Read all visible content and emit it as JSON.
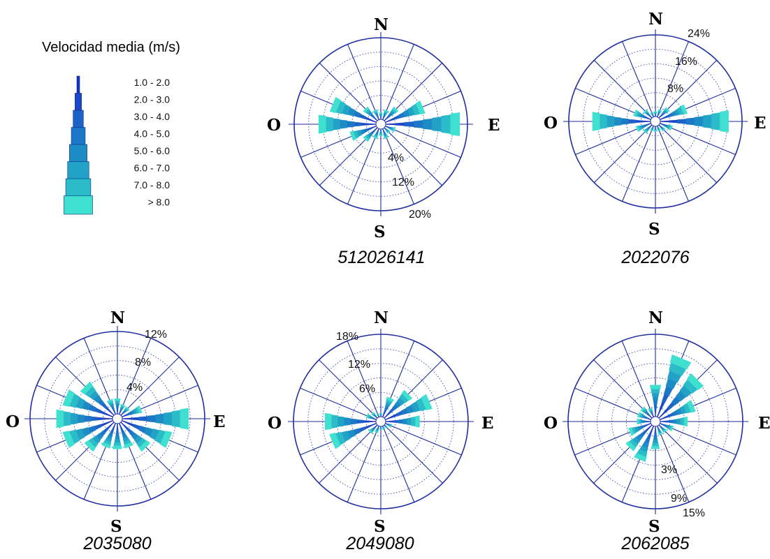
{
  "legend": {
    "title": "Velocidad media (m/s)",
    "bins": [
      "1.0 -  2.0",
      "2.0 -  3.0",
      "3.0 -  4.0",
      "4.0 -  5.0",
      "5.0 -  6.0",
      "6.0 -  7.0",
      "7.0 -  8.0",
      "> 8.0"
    ],
    "colors": [
      "#1a2fbf",
      "#1c48c8",
      "#1d62c9",
      "#1c78c6",
      "#1d8cc4",
      "#22a2c6",
      "#2cbcc9",
      "#3fe0d0"
    ]
  },
  "chart_data": [
    {
      "type": "windrose",
      "station": "512026141",
      "directions": [
        "N",
        "E",
        "S",
        "O"
      ],
      "sectors": 16,
      "ring_labels": [
        "4%",
        "12%",
        "20%"
      ],
      "rmax": 24,
      "freqs": [
        2,
        3,
        5,
        12,
        22,
        3,
        2,
        3,
        2,
        3,
        5,
        8,
        17,
        14,
        5,
        3
      ]
    },
    {
      "type": "windrose",
      "station": "2022076",
      "directions": [
        "N",
        "E",
        "S",
        "O"
      ],
      "sectors": 16,
      "ring_labels": [
        "24%",
        "16%",
        "8%"
      ],
      "rmax": 32,
      "freqs": [
        2,
        3,
        5,
        11,
        27,
        5,
        3,
        2,
        2,
        2,
        4,
        6,
        23,
        7,
        4,
        2
      ]
    },
    {
      "type": "windrose",
      "station": "2035080",
      "directions": [
        "N",
        "E",
        "S",
        "O"
      ],
      "sectors": 16,
      "ring_labels": [
        "12%",
        "8%",
        "4%"
      ],
      "rmax": 16,
      "freqs": [
        3,
        2,
        2,
        4,
        13,
        10,
        7,
        5,
        5,
        5,
        7,
        10,
        11,
        10,
        8,
        3
      ]
    },
    {
      "type": "windrose",
      "station": "2049080",
      "directions": [
        "N",
        "E",
        "S",
        "O"
      ],
      "sectors": 16,
      "ring_labels": [
        "18%",
        "12%",
        "6%"
      ],
      "rmax": 24,
      "freqs": [
        1,
        6,
        10,
        14,
        10,
        2,
        1,
        1,
        1,
        2,
        3,
        14,
        15,
        3,
        2,
        1
      ]
    },
    {
      "type": "windrose",
      "station": "2062085",
      "directions": [
        "N",
        "E",
        "S",
        "O"
      ],
      "sectors": 16,
      "ring_labels": [
        "3%",
        "9%",
        "15%"
      ],
      "rmax": 18,
      "freqs": [
        7,
        14,
        12,
        8,
        6,
        3,
        2,
        2,
        5,
        8,
        7,
        5,
        3,
        3,
        3,
        2
      ]
    }
  ]
}
